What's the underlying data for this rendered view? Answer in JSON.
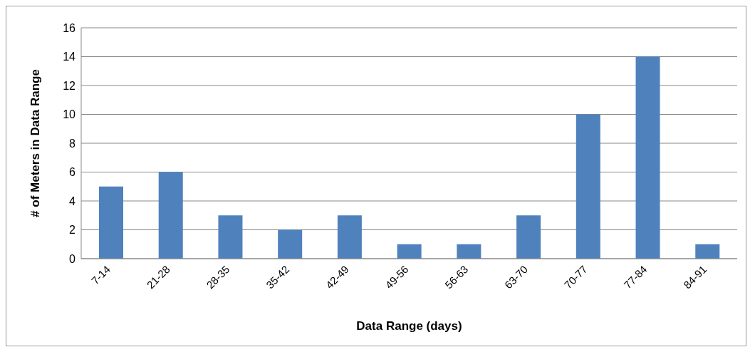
{
  "chart_data": {
    "type": "bar",
    "xlabel": "Data Range (days)",
    "ylabel": "# of Meters in Data Range",
    "categories": [
      "7-14",
      "21-28",
      "28-35",
      "35-42",
      "42-49",
      "49-56",
      "56-63",
      "63-70",
      "70-77",
      "77-84",
      "84-91"
    ],
    "values": [
      5,
      6,
      3,
      2,
      3,
      1,
      1,
      3,
      10,
      14,
      1
    ],
    "color": "#4f81bd",
    "ylim": [
      0,
      16
    ],
    "yticks": [
      0,
      2,
      4,
      6,
      8,
      10,
      12,
      14,
      16
    ],
    "grid": "y"
  }
}
